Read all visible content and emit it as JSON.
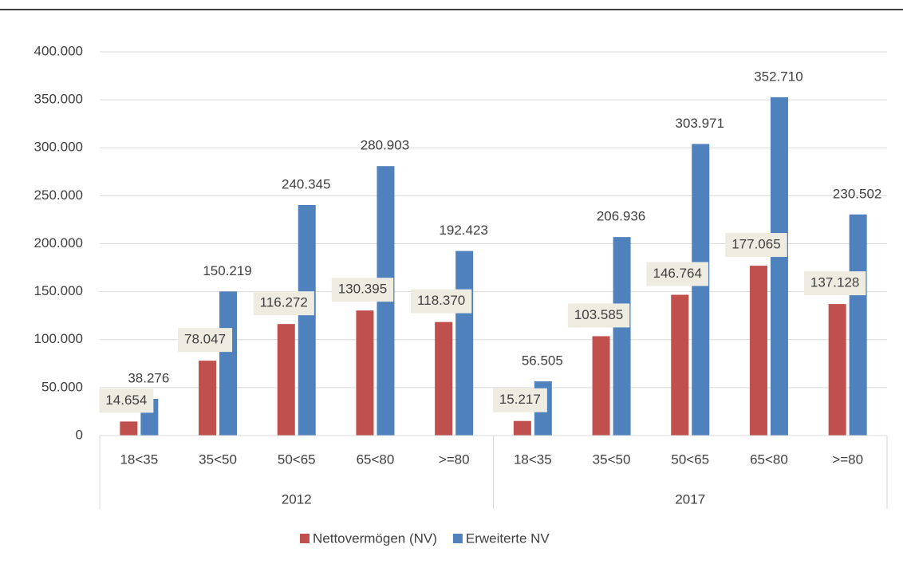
{
  "chart_data": {
    "type": "bar",
    "categories": [
      "18<35",
      "35<50",
      "50<65",
      "65<80",
      ">=80",
      "18<35",
      "35<50",
      "50<65",
      "65<80",
      ">=80"
    ],
    "groups": [
      "2012",
      "2017"
    ],
    "series": [
      {
        "name": "Nettovermögen (NV)",
        "color": "#c0504d",
        "values": [
          14654,
          78047,
          116272,
          130395,
          118370,
          15217,
          103585,
          146764,
          177065,
          137128
        ],
        "value_labels": [
          "14.654",
          "78.047",
          "116.272",
          "130.395",
          "118.370",
          "15.217",
          "103.585",
          "146.764",
          "177.065",
          "137.128"
        ]
      },
      {
        "name": "Erweiterte NV",
        "color": "#4f81bd",
        "values": [
          38276,
          150219,
          240345,
          280903,
          192423,
          56505,
          206936,
          303971,
          352710,
          230502
        ],
        "value_labels": [
          "38.276",
          "150.219",
          "240.345",
          "280.903",
          "192.423",
          "56.505",
          "206.936",
          "303.971",
          "352.710",
          "230.502"
        ]
      }
    ],
    "ylim": [
      0,
      400000
    ],
    "yticks": [
      0,
      {
        "value": 50000,
        "label": "50.000"
      },
      {
        "value": 100000,
        "label": "100.000"
      },
      {
        "value": 150000,
        "label": "150.000"
      },
      {
        "value": 200000,
        "label": "200.000"
      },
      {
        "value": 250000,
        "label": "250.000"
      },
      {
        "value": 300000,
        "label": "300.000"
      },
      {
        "value": 350000,
        "label": "350.000"
      },
      {
        "value": 400000,
        "label": "400.000"
      }
    ],
    "grid": true,
    "legend": "bottom"
  }
}
